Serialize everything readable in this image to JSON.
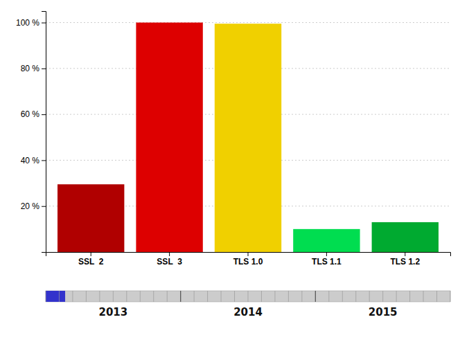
{
  "chart_data": {
    "type": "bar",
    "categories": [
      "SSL  2",
      "SSL  3",
      "TLS 1.0",
      "TLS 1.1",
      "TLS 1.2"
    ],
    "values": [
      29.5,
      100,
      99.5,
      10,
      13
    ],
    "colors": [
      "#b00000",
      "#dd0000",
      "#f0d000",
      "#00dd50",
      "#00aa30"
    ],
    "ylim": [
      0,
      105
    ],
    "yticks": [
      {
        "value": 20,
        "label": "20 %"
      },
      {
        "value": 40,
        "label": "40 %"
      },
      {
        "value": 60,
        "label": "60 %"
      },
      {
        "value": 80,
        "label": "80 %"
      },
      {
        "value": 100,
        "label": "100 %"
      }
    ],
    "grid": true,
    "annotations": [
      "2013",
      "2014",
      "2015"
    ]
  }
}
